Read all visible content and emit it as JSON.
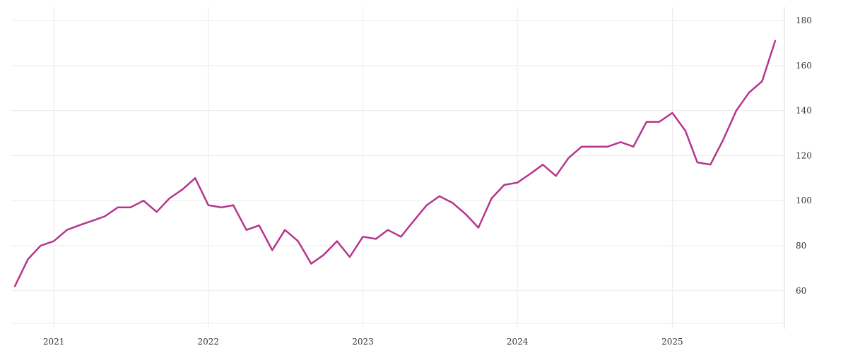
{
  "chart_data": {
    "type": "line",
    "title": "",
    "xlabel": "",
    "ylabel": "",
    "grid": true,
    "legend": "none",
    "y_axis_position": "right",
    "line_color": "#b5358c",
    "xlim": [
      "2020-10-01",
      "2025-09-01"
    ],
    "ylim": [
      43,
      186
    ],
    "y_ticks": [
      60,
      80,
      100,
      120,
      140,
      160,
      180
    ],
    "x_ticks": [
      {
        "date": "2021-01-01",
        "label": "2021"
      },
      {
        "date": "2022-01-01",
        "label": "2022"
      },
      {
        "date": "2023-01-01",
        "label": "2023"
      },
      {
        "date": "2024-01-01",
        "label": "2024"
      },
      {
        "date": "2025-01-01",
        "label": "2025"
      }
    ],
    "series": [
      {
        "x": [
          "2020-10-01",
          "2020-11-01",
          "2020-12-01",
          "2021-01-01",
          "2021-02-01",
          "2021-03-01",
          "2021-04-01",
          "2021-05-01",
          "2021-06-01",
          "2021-07-01",
          "2021-08-01",
          "2021-09-01",
          "2021-10-01",
          "2021-11-01",
          "2021-12-01",
          "2022-01-01",
          "2022-02-01",
          "2022-03-01",
          "2022-04-01",
          "2022-05-01",
          "2022-06-01",
          "2022-07-01",
          "2022-08-01",
          "2022-09-01",
          "2022-10-01",
          "2022-11-01",
          "2022-12-01",
          "2023-01-01",
          "2023-02-01",
          "2023-03-01",
          "2023-04-01",
          "2023-05-01",
          "2023-06-01",
          "2023-07-01",
          "2023-08-01",
          "2023-09-01",
          "2023-10-01",
          "2023-11-01",
          "2023-12-01",
          "2024-01-01",
          "2024-02-01",
          "2024-03-01",
          "2024-04-01",
          "2024-05-01",
          "2024-06-01",
          "2024-07-01",
          "2024-08-01",
          "2024-09-01",
          "2024-10-01",
          "2024-11-01",
          "2024-12-01",
          "2025-01-01",
          "2025-02-01",
          "2025-03-01",
          "2025-04-01",
          "2025-05-01",
          "2025-06-01",
          "2025-07-01",
          "2025-08-01",
          "2025-09-01"
        ],
        "y": [
          62,
          74,
          80,
          82,
          87,
          89,
          91,
          93,
          97,
          97,
          100,
          95,
          101,
          105,
          110,
          98,
          97,
          98,
          87,
          89,
          78,
          87,
          82,
          72,
          76,
          82,
          75,
          84,
          83,
          87,
          84,
          91,
          98,
          102,
          99,
          94,
          88,
          101,
          107,
          108,
          112,
          116,
          111,
          119,
          124,
          124,
          124,
          126,
          124,
          135,
          135,
          139,
          131,
          117,
          116,
          127,
          140,
          148,
          153,
          171
        ]
      }
    ]
  }
}
